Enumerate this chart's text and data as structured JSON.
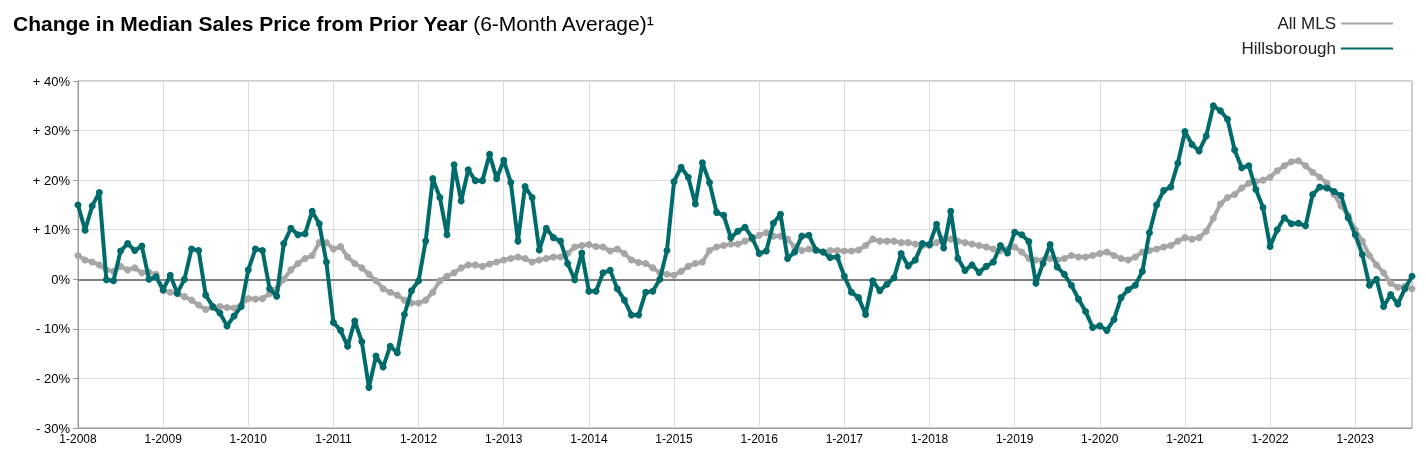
{
  "chart_data": {
    "type": "line",
    "title": "Change in Median Sales Price from Prior Year",
    "subtitle": "(6-Month Average)¹",
    "categories": [
      "1-2008",
      null,
      null,
      null,
      null,
      null,
      null,
      null,
      null,
      null,
      null,
      null,
      "1-2009",
      null,
      null,
      null,
      null,
      null,
      null,
      null,
      null,
      null,
      null,
      null,
      "1-2010",
      null,
      null,
      null,
      null,
      null,
      null,
      null,
      null,
      null,
      null,
      null,
      "1-2011",
      null,
      null,
      null,
      null,
      null,
      null,
      null,
      null,
      null,
      null,
      null,
      "1-2012",
      null,
      null,
      null,
      null,
      null,
      null,
      null,
      null,
      null,
      null,
      null,
      "1-2013",
      null,
      null,
      null,
      null,
      null,
      null,
      null,
      null,
      null,
      null,
      null,
      "1-2014",
      null,
      null,
      null,
      null,
      null,
      null,
      null,
      null,
      null,
      null,
      null,
      "1-2015",
      null,
      null,
      null,
      null,
      null,
      null,
      null,
      null,
      null,
      null,
      null,
      "1-2016",
      null,
      null,
      null,
      null,
      null,
      null,
      null,
      null,
      null,
      null,
      null,
      "1-2017",
      null,
      null,
      null,
      null,
      null,
      null,
      null,
      null,
      null,
      null,
      null,
      "1-2018",
      null,
      null,
      null,
      null,
      null,
      null,
      null,
      null,
      null,
      null,
      null,
      "1-2019",
      null,
      null,
      null,
      null,
      null,
      null,
      null,
      null,
      null,
      null,
      null,
      "1-2020",
      null,
      null,
      null,
      null,
      null,
      null,
      null,
      null,
      null,
      null,
      null,
      "1-2021",
      null,
      null,
      null,
      null,
      null,
      null,
      null,
      null,
      null,
      null,
      null,
      "1-2022",
      null,
      null,
      null,
      null,
      null,
      null,
      null,
      null,
      null,
      null,
      null,
      "1-2023",
      null,
      null,
      null,
      null,
      null,
      null,
      null,
      null
    ],
    "series": [
      {
        "name": "All MLS",
        "color": "#a6a6a6",
        "values": [
          4.8,
          3.9,
          3.5,
          2.9,
          1.9,
          1.6,
          2.6,
          1.9,
          2.3,
          1.3,
          1.4,
          1.0,
          -2.3,
          -2.6,
          -2.9,
          -3.5,
          -4.2,
          -5.2,
          -6.1,
          -5.7,
          -5.5,
          -5.7,
          -5.8,
          -5.2,
          -3.9,
          -4.0,
          -3.9,
          -2.9,
          -1.9,
          0,
          1.9,
          3.2,
          4.2,
          4.8,
          7.4,
          7.4,
          6.1,
          6.6,
          4.5,
          3.2,
          2.3,
          1.0,
          -0.3,
          -1.9,
          -2.6,
          -3.2,
          -4.2,
          -4.8,
          -4.8,
          -4.2,
          -2.6,
          -0.3,
          0.6,
          1.3,
          2.3,
          2.9,
          2.9,
          2.6,
          3.1,
          3.5,
          3.9,
          4.2,
          4.5,
          4.2,
          3.5,
          3.9,
          4.2,
          4.5,
          4.5,
          5.2,
          6.5,
          6.8,
          7.0,
          6.6,
          6.5,
          5.7,
          6.1,
          5.2,
          3.9,
          3.4,
          3.2,
          2.3,
          1.3,
          1.0,
          0.8,
          1.6,
          2.6,
          3.2,
          3.5,
          5.8,
          6.5,
          6.8,
          7.1,
          7.1,
          7.7,
          8.1,
          8.9,
          9.4,
          8.7,
          8.7,
          8.1,
          6.5,
          5.8,
          6.1,
          5.8,
          5.5,
          5.8,
          5.8,
          5.7,
          5.7,
          5.9,
          6.8,
          8.1,
          7.7,
          7.7,
          7.7,
          7.4,
          7.4,
          7.1,
          6.8,
          6.8,
          7.4,
          8.1,
          8.1,
          7.7,
          7.4,
          7.1,
          6.8,
          6.5,
          6.1,
          5.8,
          6.1,
          6.5,
          5.5,
          4.2,
          3.9,
          3.9,
          4.2,
          3.9,
          4.2,
          4.8,
          4.5,
          4.5,
          4.8,
          5.2,
          5.5,
          4.8,
          4.2,
          3.9,
          4.5,
          5.5,
          5.8,
          6.1,
          6.5,
          6.8,
          7.7,
          8.4,
          8.1,
          8.4,
          9.7,
          12.3,
          15.2,
          16.5,
          17.1,
          18.4,
          19.4,
          19.7,
          20.0,
          20.6,
          21.9,
          22.9,
          23.7,
          23.9,
          22.9,
          21.6,
          20.6,
          19.4,
          17.1,
          14.8,
          12.9,
          10.0,
          7.7,
          4.8,
          2.9,
          1.3,
          -0.8,
          -1.6,
          -1.4,
          -1.9
        ]
      },
      {
        "name": "Hillsborough",
        "color": "#006b6b",
        "values": [
          15.0,
          9.9,
          14.8,
          17.5,
          -0.1,
          -0.3,
          5.7,
          7.2,
          5.8,
          6.7,
          0,
          0.5,
          -2.1,
          0.8,
          -2.8,
          0,
          6.1,
          5.8,
          -3.2,
          -5.5,
          -6.8,
          -9.4,
          -7.4,
          -5.5,
          1.9,
          6.1,
          5.8,
          -1.9,
          -3.4,
          7.2,
          10.3,
          9.0,
          9.2,
          13.7,
          11.2,
          3.5,
          -8.7,
          -10.3,
          -13.5,
          -8.4,
          -12.6,
          -21.8,
          -15.5,
          -17.7,
          -13.5,
          -14.8,
          -7.1,
          -2.3,
          -0.3,
          7.7,
          20.3,
          16.5,
          9.0,
          23.1,
          15.8,
          22.1,
          19.9,
          19.9,
          25.2,
          20.3,
          24.0,
          19.5,
          7.7,
          18.7,
          16.5,
          5.9,
          10.3,
          8.4,
          7.7,
          3.2,
          -0.1,
          5.3,
          -2.4,
          -2.4,
          1.3,
          1.8,
          -1.9,
          -4.2,
          -7.2,
          -7.2,
          -2.6,
          -2.4,
          0,
          5.8,
          19.7,
          22.6,
          20.6,
          15.2,
          23.5,
          19.5,
          13.5,
          12.9,
          8.4,
          9.7,
          10.5,
          8.4,
          5.2,
          5.7,
          11.3,
          13.1,
          4.2,
          5.5,
          8.7,
          8.9,
          5.9,
          5.5,
          4.4,
          4.5,
          0.6,
          -2.6,
          -3.7,
          -7.1,
          -0.3,
          -2.3,
          -1.0,
          0.3,
          5.2,
          2.7,
          3.9,
          7.2,
          7.0,
          11.1,
          6.3,
          13.7,
          4.2,
          1.8,
          2.9,
          1.4,
          2.6,
          3.5,
          6.8,
          5.3,
          9.5,
          9.0,
          7.6,
          -0.8,
          3.2,
          7.0,
          2.5,
          1.0,
          -1.2,
          -4.0,
          -6.5,
          -9.7,
          -9.4,
          -10.3,
          -8.1,
          -3.7,
          -2.1,
          -1.2,
          1.6,
          9.4,
          15.0,
          17.9,
          18.6,
          23.4,
          29.8,
          27.2,
          25.9,
          28.9,
          35.0,
          34.0,
          32.3,
          26.1,
          22.5,
          22.9,
          18.1,
          14.5,
          6.6,
          10.0,
          12.4,
          11.2,
          11.3,
          10.8,
          17.1,
          18.6,
          18.4,
          17.7,
          16.9,
          12.4,
          9.0,
          5.0,
          -1.2,
          0,
          -5.5,
          -3.1,
          -5.0,
          -1.9,
          0.6
        ]
      }
    ],
    "ylim": [
      -30,
      40
    ],
    "yticks": [
      {
        "value": -30,
        "label": "- 30%"
      },
      {
        "value": -20,
        "label": "- 20%"
      },
      {
        "value": -10,
        "label": "- 10%"
      },
      {
        "value": 0,
        "label": "0%"
      },
      {
        "value": 10,
        "label": "+ 10%"
      },
      {
        "value": 20,
        "label": "+ 20%"
      },
      {
        "value": 30,
        "label": "+ 30%"
      },
      {
        "value": 40,
        "label": "+ 40%"
      }
    ],
    "ref_lines": [
      {
        "axis": "y",
        "value": 0,
        "color": "#808080"
      }
    ],
    "grid": true,
    "legend": "top right",
    "marker": "circle",
    "line_style": "solid"
  }
}
